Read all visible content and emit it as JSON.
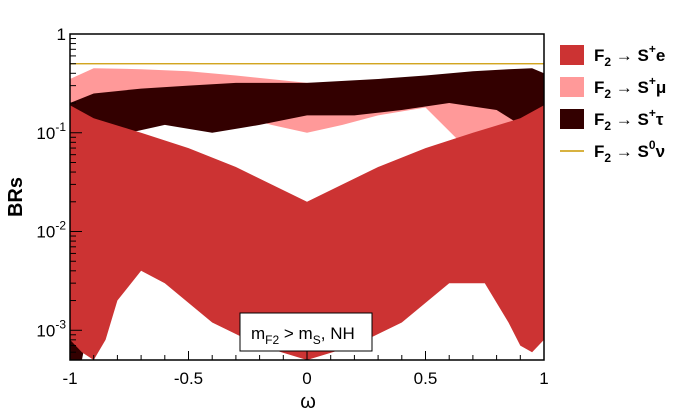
{
  "chart_data": {
    "type": "area",
    "xlabel": "ω",
    "ylabel": "BRs",
    "xlim": [
      -1,
      1
    ],
    "ylim": [
      0.0005,
      1
    ],
    "yscale": "log",
    "x_ticks": [
      {
        "value": -1,
        "label": "-1"
      },
      {
        "value": -0.5,
        "label": "-0.5"
      },
      {
        "value": 0,
        "label": "0"
      },
      {
        "value": 0.5,
        "label": "0.5"
      },
      {
        "value": 1,
        "label": "1"
      }
    ],
    "y_ticks": [
      {
        "value": 1,
        "base": "1",
        "exp": ""
      },
      {
        "value": 0.1,
        "base": "10",
        "exp": "-1"
      },
      {
        "value": 0.01,
        "base": "10",
        "exp": "-2"
      },
      {
        "value": 0.001,
        "base": "10",
        "exp": "-3"
      }
    ],
    "annotation": {
      "m": "m",
      "sub1": "F2",
      "gt": " > m",
      "sub2": "S",
      "tail": ", NH"
    },
    "series": [
      {
        "key": "e",
        "legend": {
          "f": "F",
          "sub": "2",
          "arrow": " → S",
          "sup": "+",
          "tail": "e"
        },
        "color": "#cc3333",
        "upper": [
          [
            -1,
            0.19
          ],
          [
            -0.9,
            0.14
          ],
          [
            -0.7,
            0.1
          ],
          [
            -0.5,
            0.07
          ],
          [
            -0.3,
            0.045
          ],
          [
            -0.15,
            0.03
          ],
          [
            0,
            0.02
          ],
          [
            0.15,
            0.03
          ],
          [
            0.3,
            0.045
          ],
          [
            0.5,
            0.07
          ],
          [
            0.7,
            0.1
          ],
          [
            0.9,
            0.14
          ],
          [
            1,
            0.19
          ]
        ],
        "lower": [
          [
            -1,
            0.0008
          ],
          [
            -0.95,
            0.0006
          ],
          [
            -0.9,
            0.0005
          ],
          [
            -0.85,
            0.0008
          ],
          [
            -0.8,
            0.002
          ],
          [
            -0.7,
            0.004
          ],
          [
            -0.6,
            0.003
          ],
          [
            -0.4,
            0.0012
          ],
          [
            -0.2,
            0.0007
          ],
          [
            0,
            0.0005
          ],
          [
            0.2,
            0.0007
          ],
          [
            0.4,
            0.0012
          ],
          [
            0.6,
            0.003
          ],
          [
            0.75,
            0.003
          ],
          [
            0.85,
            0.0012
          ],
          [
            0.9,
            0.0007
          ],
          [
            0.95,
            0.0006
          ],
          [
            1,
            0.0008
          ]
        ]
      },
      {
        "key": "mu",
        "legend": {
          "f": "F",
          "sub": "2",
          "arrow": " → S",
          "sup": "+",
          "tail": "μ"
        },
        "color": "#ff9999",
        "upper": [
          [
            -1,
            0.35
          ],
          [
            -0.9,
            0.45
          ],
          [
            -0.7,
            0.44
          ],
          [
            -0.5,
            0.42
          ],
          [
            -0.3,
            0.38
          ],
          [
            0,
            0.32
          ],
          [
            0.3,
            0.33
          ],
          [
            0.5,
            0.34
          ],
          [
            0.7,
            0.35
          ],
          [
            0.85,
            0.3
          ],
          [
            0.95,
            0.25
          ],
          [
            1,
            0.3
          ]
        ],
        "lower": [
          [
            -1,
            0.1
          ],
          [
            -0.9,
            0.15
          ],
          [
            -0.7,
            0.18
          ],
          [
            -0.5,
            0.18
          ],
          [
            -0.3,
            0.15
          ],
          [
            -0.15,
            0.12
          ],
          [
            0,
            0.1
          ],
          [
            0.15,
            0.12
          ],
          [
            0.3,
            0.15
          ],
          [
            0.5,
            0.18
          ],
          [
            0.7,
            0.06
          ],
          [
            0.8,
            0.01
          ],
          [
            0.85,
            0.003
          ],
          [
            0.9,
            0.001
          ],
          [
            0.95,
            0.0008
          ],
          [
            1,
            0.002
          ]
        ]
      },
      {
        "key": "tau",
        "legend": {
          "f": "F",
          "sub": "2",
          "arrow": " → S",
          "sup": "+",
          "tail": "τ"
        },
        "color": "#330000",
        "upper": [
          [
            -1,
            0.2
          ],
          [
            -0.9,
            0.25
          ],
          [
            -0.7,
            0.28
          ],
          [
            -0.5,
            0.3
          ],
          [
            -0.3,
            0.32
          ],
          [
            0,
            0.32
          ],
          [
            0.3,
            0.35
          ],
          [
            0.5,
            0.38
          ],
          [
            0.7,
            0.42
          ],
          [
            0.85,
            0.44
          ],
          [
            0.95,
            0.45
          ],
          [
            1,
            0.4
          ]
        ],
        "lower": [
          [
            -1,
            0.0005
          ],
          [
            -0.95,
            0.0005
          ],
          [
            -0.9,
            0.002
          ],
          [
            -0.85,
            0.02
          ],
          [
            -0.75,
            0.1
          ],
          [
            -0.6,
            0.12
          ],
          [
            -0.4,
            0.1
          ],
          [
            -0.2,
            0.12
          ],
          [
            0,
            0.15
          ],
          [
            0.2,
            0.15
          ],
          [
            0.4,
            0.17
          ],
          [
            0.6,
            0.2
          ],
          [
            0.8,
            0.17
          ],
          [
            0.9,
            0.12
          ],
          [
            0.95,
            0.08
          ],
          [
            1,
            0.05
          ]
        ]
      }
    ],
    "lines": [
      {
        "key": "nu",
        "legend": {
          "f": "F",
          "sub": "2",
          "arrow": " → S",
          "sup": "0",
          "tail": "ν"
        },
        "color": "#cc9900",
        "value": 0.5
      }
    ],
    "legend_position": "right"
  }
}
